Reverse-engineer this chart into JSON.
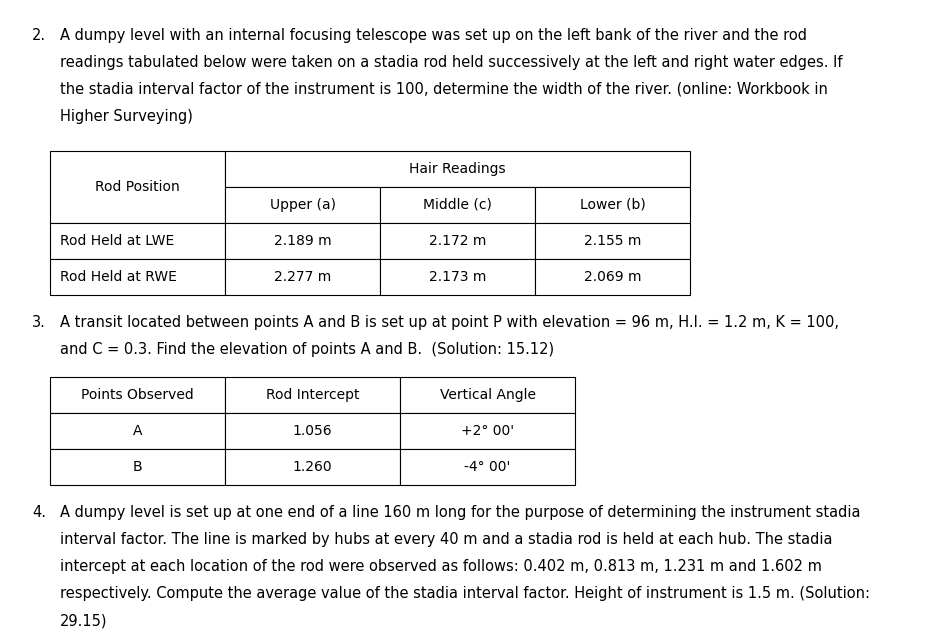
{
  "bg_color": "#ffffff",
  "text_color": "#000000",
  "font_size_body": 10.5,
  "font_size_table": 10.0,
  "p2_number": "2.",
  "p2_lines": [
    "A dumpy level with an internal focusing telescope was set up on the left bank of the river and the rod",
    "readings tabulated below were taken on a stadia rod held successively at the left and right water edges. If",
    "the stadia interval factor of the instrument is 100, determine the width of the river. (online: Workbook in",
    "Higher Surveying)"
  ],
  "table1": {
    "hair_readings_label": "Hair Readings",
    "rod_position_label": "Rod Position",
    "sub_headers": [
      "Upper (a)",
      "Middle (c)",
      "Lower (b)"
    ],
    "data_rows": [
      [
        "Rod Held at LWE",
        "2.189 m",
        "2.172 m",
        "2.155 m"
      ],
      [
        "Rod Held at RWE",
        "2.277 m",
        "2.173 m",
        "2.069 m"
      ]
    ]
  },
  "p3_number": "3.",
  "p3_lines": [
    "A transit located between points A and B is set up at point P with elevation = 96 m, H.I. = 1.2 m, K = 100,",
    "and C = 0.3. Find the elevation of points A and B.  (Solution: 15.12)"
  ],
  "table2": {
    "headers": [
      "Points Observed",
      "Rod Intercept",
      "Vertical Angle"
    ],
    "data_rows": [
      [
        "A",
        "1.056",
        "+2° 00'"
      ],
      [
        "B",
        "1.260",
        "-4° 00'"
      ]
    ]
  },
  "p4_number": "4.",
  "p4_lines": [
    "A dumpy level is set up at one end of a line 160 m long for the purpose of determining the instrument stadia",
    "interval factor. The line is marked by hubs at every 40 m and a stadia rod is held at each hub. The stadia",
    "intercept at each location of the rod were observed as follows: 0.402 m, 0.813 m, 1.231 m and 1.602 m",
    "respectively. Compute the average value of the stadia interval factor. Height of instrument is 1.5 m. (Solution:",
    "29.15)"
  ]
}
